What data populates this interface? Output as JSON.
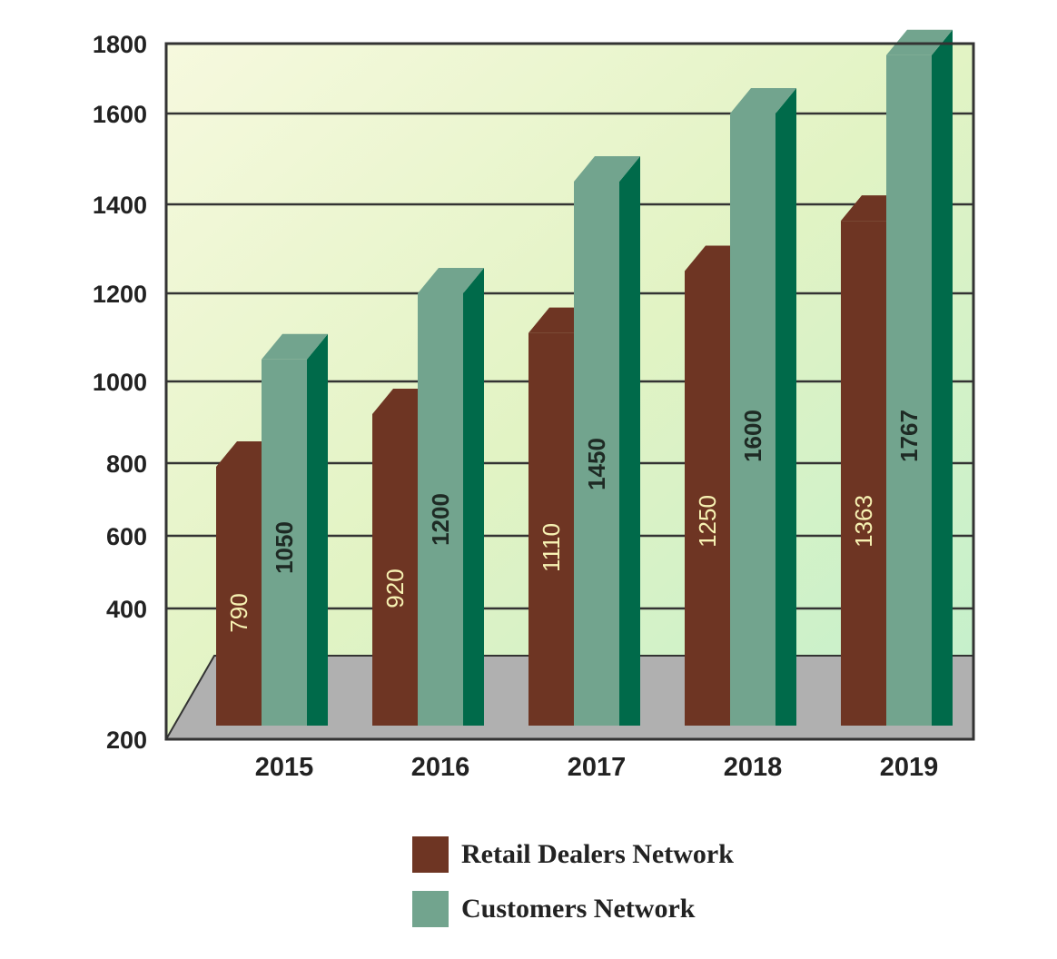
{
  "chart_data": {
    "type": "bar",
    "categories": [
      "2015",
      "2016",
      "2017",
      "2018",
      "2019"
    ],
    "series": [
      {
        "name": "Retail Dealers Network",
        "values": [
          790,
          920,
          1110,
          1250,
          1363
        ],
        "color": "#6e3523"
      },
      {
        "name": "Customers Network",
        "values": [
          1050,
          1200,
          1450,
          1600,
          1767
        ],
        "color": "#72a48e"
      }
    ],
    "y_ticks": [
      200,
      400,
      600,
      800,
      1000,
      1200,
      1400,
      1600,
      1800
    ],
    "ylim": [
      200,
      1800
    ],
    "grid": true,
    "legend_position": "bottom",
    "colors": {
      "customers_side": "#006a4a",
      "retail_top": "#6e3523",
      "customers_top": "#72a48e",
      "floor": "#b0b0b0",
      "plot_bg_top": "#f3f8da",
      "plot_bg_bottom": "#c6f0c6"
    }
  }
}
